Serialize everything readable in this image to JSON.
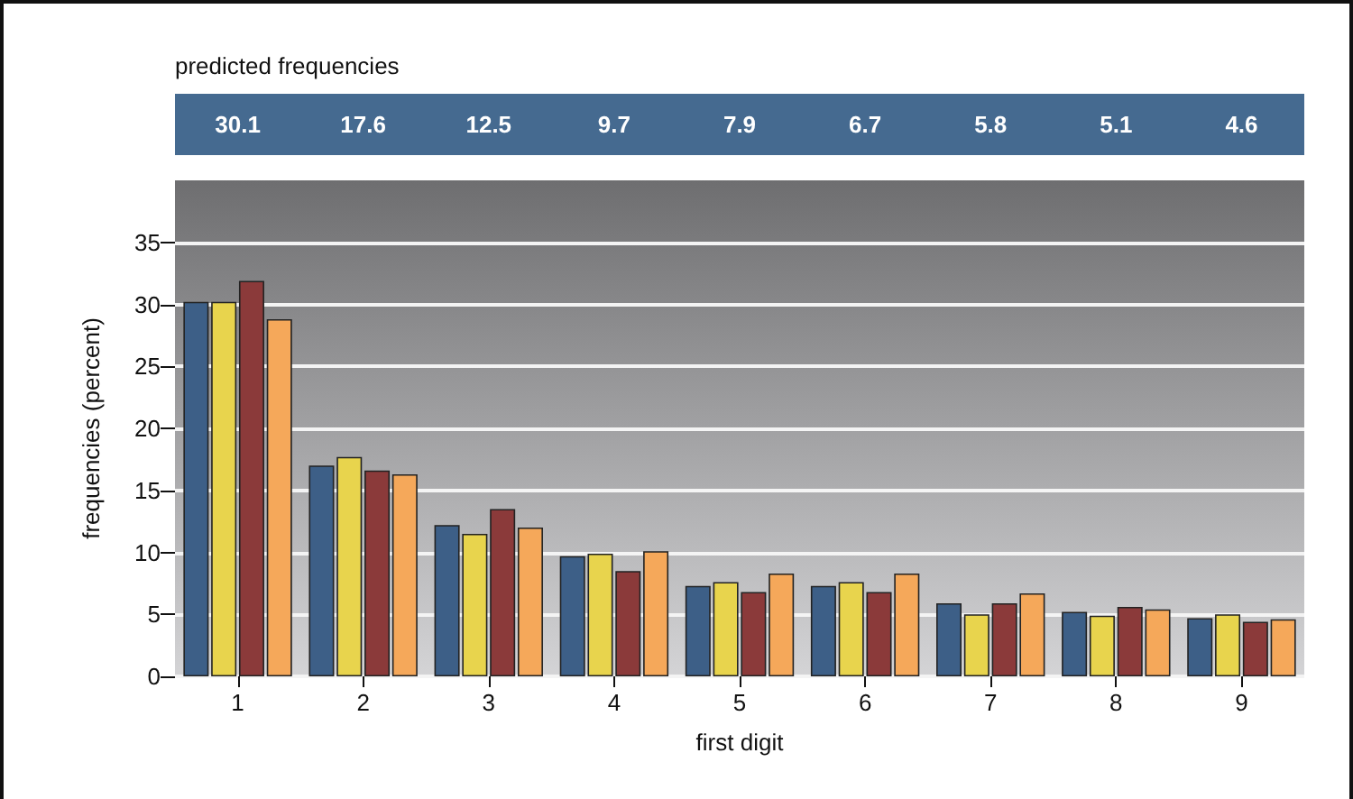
{
  "chart_data": {
    "type": "bar",
    "xlabel": "first digit",
    "ylabel": "frequencies (percent)",
    "categories": [
      "1",
      "2",
      "3",
      "4",
      "5",
      "6",
      "7",
      "8",
      "9"
    ],
    "series": [
      {
        "color": "#3d5f87",
        "values": [
          30.2,
          17.0,
          12.2,
          9.7,
          7.3,
          7.3,
          5.9,
          5.2,
          4.7
        ]
      },
      {
        "color": "#e8d44d",
        "values": [
          30.2,
          17.7,
          11.5,
          9.9,
          7.6,
          7.6,
          5.0,
          4.9,
          5.0
        ]
      },
      {
        "color": "#8b3a3a",
        "values": [
          31.9,
          16.6,
          13.5,
          8.5,
          6.8,
          6.8,
          5.9,
          5.6,
          4.4
        ]
      },
      {
        "color": "#f5a85a",
        "values": [
          28.8,
          16.3,
          12.0,
          10.1,
          8.3,
          8.3,
          6.7,
          5.4,
          4.6
        ]
      }
    ],
    "ylim": [
      0,
      40
    ],
    "yticks": [
      0,
      5,
      10,
      15,
      20,
      25,
      30,
      35
    ],
    "grid": "y",
    "annotations": [
      "predicted frequencies",
      "30.1",
      "17.6",
      "12.5",
      "9.7",
      "7.9",
      "6.7",
      "5.8",
      "5.1",
      "4.6"
    ]
  }
}
